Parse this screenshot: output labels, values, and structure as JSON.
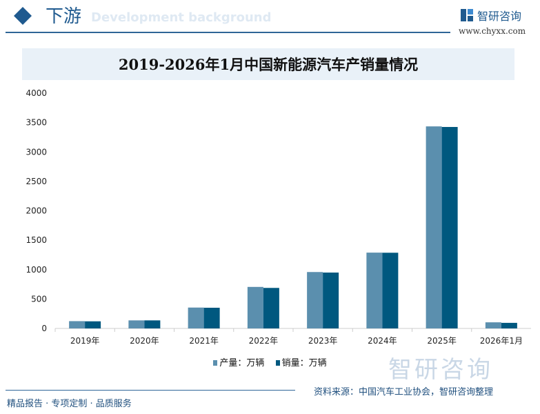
{
  "header": {
    "title": "下游",
    "subtitle": "Development background",
    "logo_text": "智研咨询",
    "logo_url": "www.chyxx.com"
  },
  "colors": {
    "production": "#5b8fae",
    "sales": "#00587f",
    "accent": "#1f5a8f"
  },
  "chart_data": {
    "type": "bar",
    "title": "2019-2026年1月中国新能源汽车产销量情况",
    "categories": [
      "2019年",
      "2020年",
      "2021年",
      "2022年",
      "2023年",
      "2024年",
      "2025年",
      "2026年1月"
    ],
    "series": [
      {
        "name": "产量：万辆",
        "values": [
          124,
          137,
          355,
          706,
          959,
          1289,
          3435,
          104
        ]
      },
      {
        "name": "销量：万辆",
        "values": [
          121,
          137,
          352,
          689,
          950,
          1287,
          3425,
          95
        ]
      }
    ],
    "ylim": [
      0,
      4000
    ],
    "yticks": [
      0,
      500,
      1000,
      1500,
      2000,
      2500,
      3000,
      3500,
      4000
    ],
    "grid": false,
    "legend": "bottom"
  },
  "watermark": "智研咨询",
  "source": "资料来源：中国汽车工业协会，智研咨询整理",
  "footer": "精品报告 · 专项定制 · 品质服务"
}
